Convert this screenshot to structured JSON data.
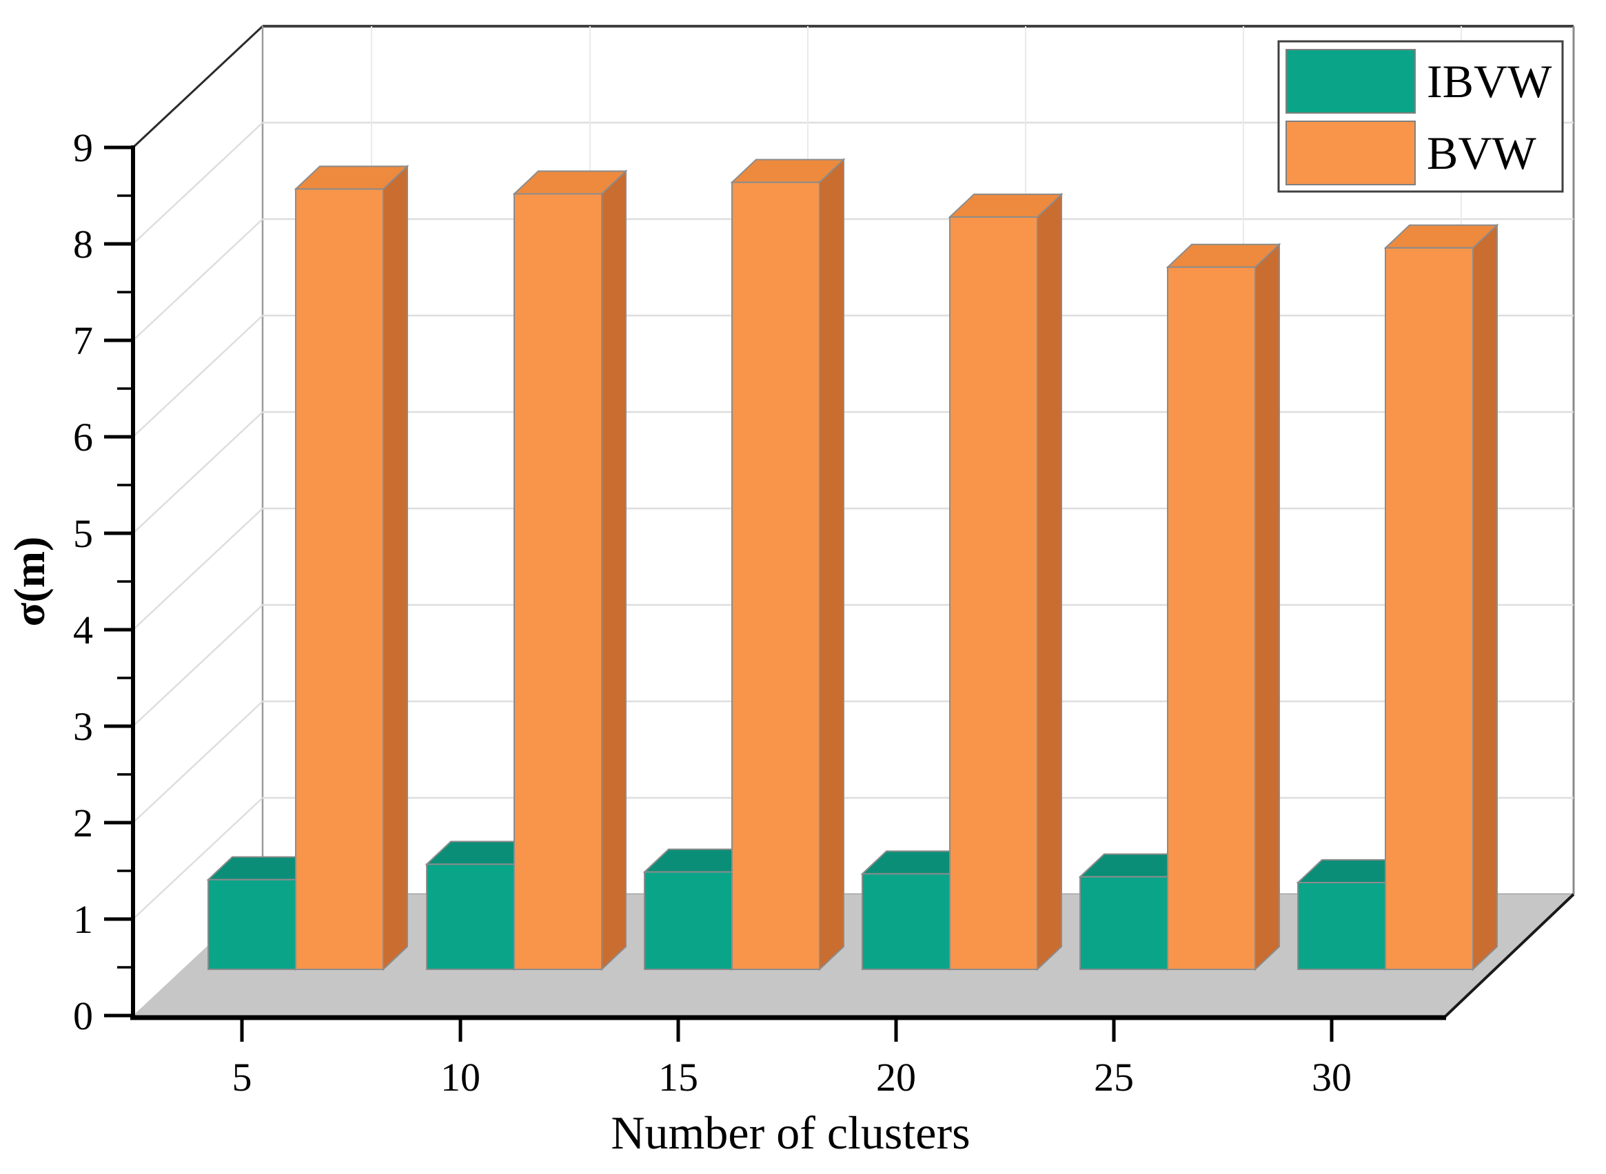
{
  "chart_data": {
    "type": "bar",
    "projection": "3d-oblique",
    "title": "",
    "xlabel": "Number of clusters",
    "ylabel": "σ(m)",
    "categories": [
      "5",
      "10",
      "15",
      "20",
      "25",
      "30"
    ],
    "series": [
      {
        "name": "IBVW",
        "color": "#0AA489",
        "top_color": "#0B8E77",
        "side_color": "#0A7E6B",
        "values": [
          0.93,
          1.09,
          1.01,
          0.99,
          0.96,
          0.9
        ]
      },
      {
        "name": "BVW",
        "color": "#F8954A",
        "top_color": "#EE8A3E",
        "side_color": "#C96D31",
        "values": [
          8.09,
          8.04,
          8.16,
          7.8,
          7.28,
          7.48
        ]
      }
    ],
    "ylim": [
      0,
      9
    ],
    "yticks": [
      "0",
      "1",
      "2",
      "3",
      "4",
      "5",
      "6",
      "7",
      "8",
      "9"
    ],
    "minor_yticks_interval": 0.5,
    "grid": true,
    "legend_position": "top-right"
  },
  "legend": {
    "items": [
      {
        "label": "IBVW",
        "swatch_color": "#0AA489"
      },
      {
        "label": "BVW",
        "swatch_color": "#F8954A"
      }
    ]
  },
  "colors": {
    "floor": "#C6C6C6",
    "wall": "#FFFFFF",
    "gridline": "#DEDEDE",
    "back_gridline_vertical": "#EAEAEA",
    "axis": "#000000",
    "wall_edge_dark": "#3F3F3F",
    "wall_edge_gray": "#8A8A8A",
    "floor_edge": "#1A1A1A",
    "bar_outline": "#8C8C8C",
    "legend_border": "#404040",
    "swatch_border": "#808080"
  }
}
